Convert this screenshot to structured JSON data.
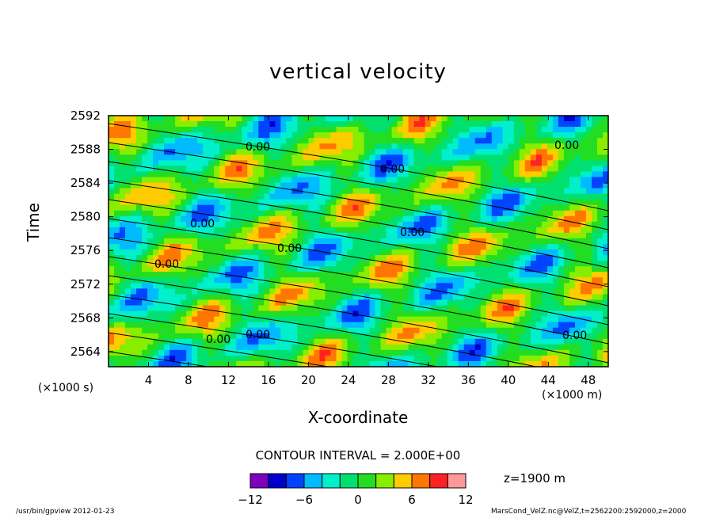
{
  "chart_data": {
    "type": "heatmap",
    "title": "vertical velocity",
    "xlabel": "X-coordinate",
    "ylabel": "Time",
    "x_unit": "(×1000 m)",
    "y_unit": "(×1000 s)",
    "xlim": [
      0,
      50
    ],
    "ylim": [
      2562.2,
      2592
    ],
    "x_ticks": [
      "4",
      "8",
      "12",
      "16",
      "20",
      "24",
      "28",
      "32",
      "36",
      "40",
      "44",
      "48"
    ],
    "y_ticks": [
      "2564",
      "2568",
      "2572",
      "2576",
      "2580",
      "2584",
      "2588",
      "2592"
    ],
    "contour_interval": "CONTOUR INTERVAL = 2.000E+00",
    "contour_labels": "0.00",
    "colorbar": {
      "ticks": [
        "−12",
        "−6",
        "0",
        "6",
        "12"
      ],
      "range": [
        -12,
        12
      ],
      "colors": [
        "#7f00bf",
        "#0000cc",
        "#0044ff",
        "#00bbff",
        "#00f0cc",
        "#00e070",
        "#22dd22",
        "#88ee00",
        "#ffcc00",
        "#ff7700",
        "#ff2222",
        "#ff9999"
      ]
    },
    "z_level": "z=1900 m"
  },
  "footer": {
    "left": "/usr/bin/gpview  2012-01-23",
    "right": "MarsCond_VelZ.nc@VelZ,t=2562200:2592000,z=2000"
  }
}
